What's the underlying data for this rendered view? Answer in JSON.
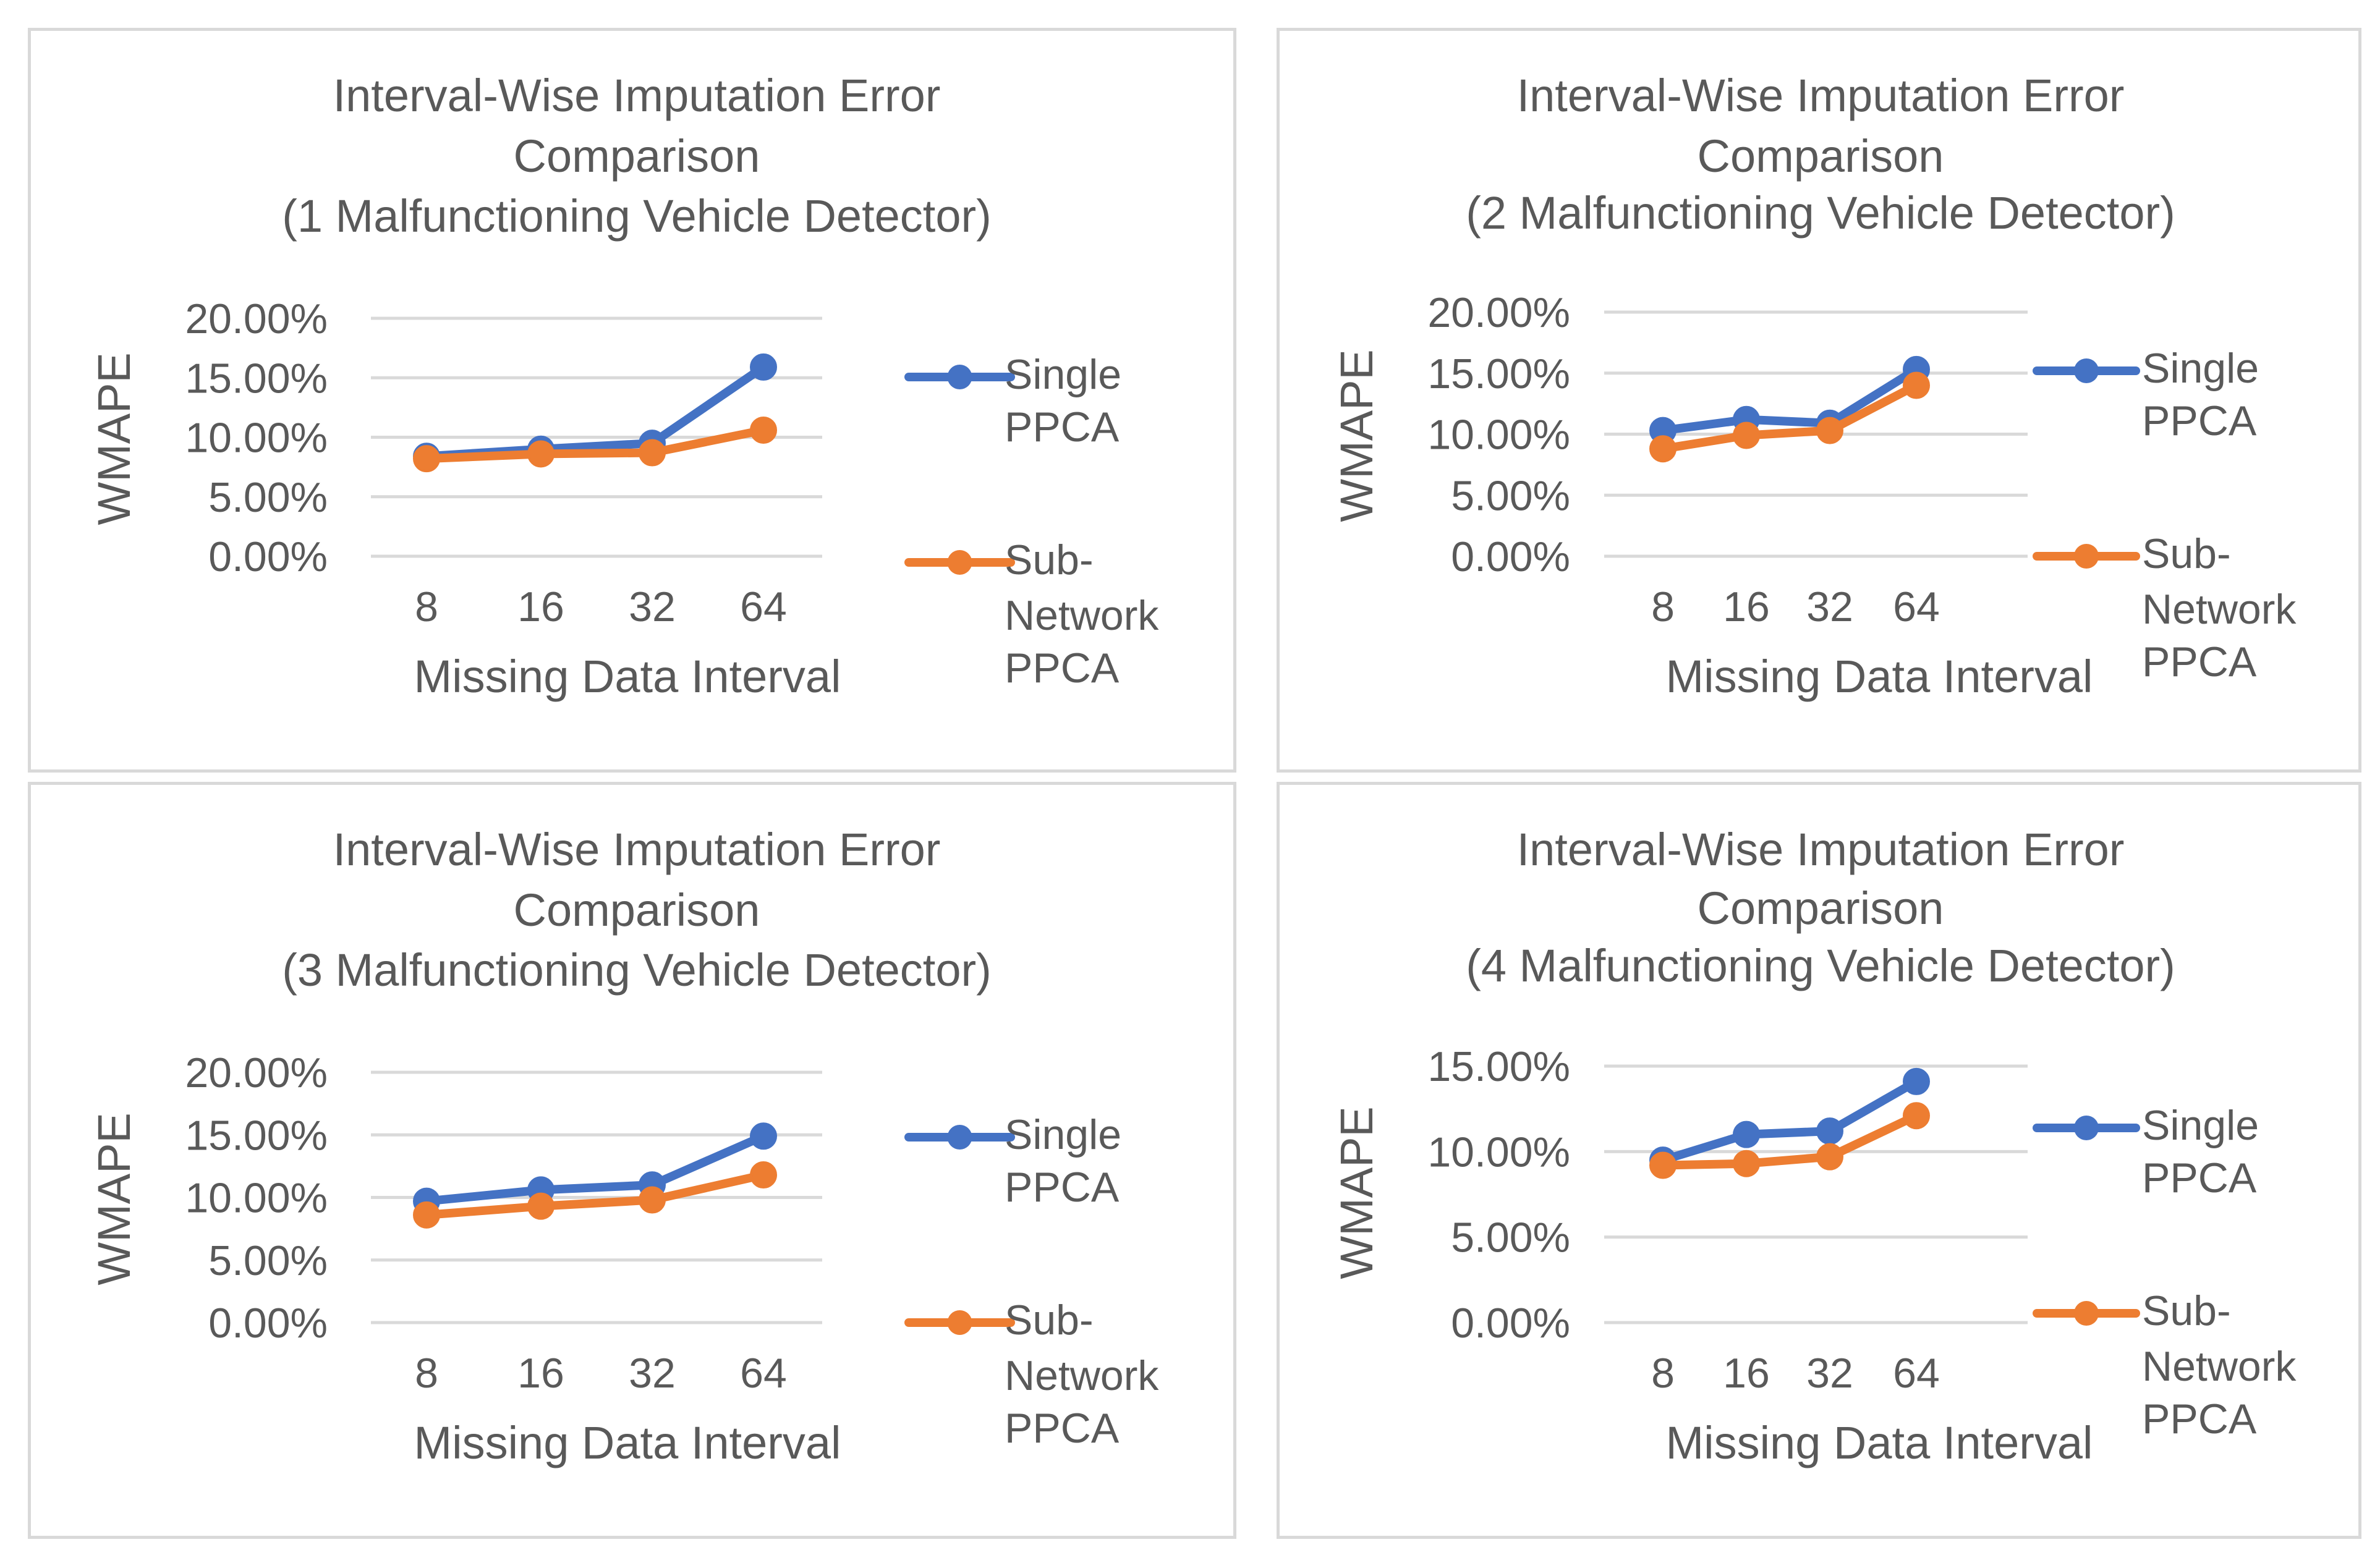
{
  "colors": {
    "single": "#4472c4",
    "sub": "#ed7d31",
    "text": "#595959",
    "grid": "#d9d9d9"
  },
  "chart_data": [
    {
      "type": "line",
      "title": [
        "Interval-Wise Imputation Error",
        "Comparison",
        "(1 Malfunctioning Vehicle Detector)"
      ],
      "xlabel": "Missing Data Interval",
      "ylabel": "WMAPE",
      "categories": [
        "8",
        "16",
        "32",
        "64"
      ],
      "yticks": [
        0,
        5,
        10,
        15,
        20
      ],
      "ytick_labels": [
        "0.00%",
        "5.00%",
        "10.00%",
        "15.00%",
        "20.00%"
      ],
      "ylim": [
        0,
        20
      ],
      "grid": true,
      "legend_position": "right",
      "series": [
        {
          "name": "Single PPCA",
          "legend_lines": [
            "Single",
            "PPCA"
          ],
          "values": [
            8.4,
            9.0,
            9.5,
            15.9
          ]
        },
        {
          "name": "Sub-Network PPCA",
          "legend_lines": [
            "Sub-",
            "Network",
            "PPCA"
          ],
          "values": [
            8.2,
            8.6,
            8.7,
            10.6
          ]
        }
      ]
    },
    {
      "type": "line",
      "title": [
        "Interval-Wise Imputation Error",
        "Comparison",
        "(2 Malfunctioning Vehicle Detector)"
      ],
      "xlabel": "Missing Data Interval",
      "ylabel": "WMAPE",
      "categories": [
        "8",
        "16",
        "32",
        "64"
      ],
      "yticks": [
        0,
        5,
        10,
        15,
        20
      ],
      "ytick_labels": [
        "0.00%",
        "5.00%",
        "10.00%",
        "15.00%",
        "20.00%"
      ],
      "ylim": [
        0,
        20
      ],
      "grid": true,
      "legend_position": "right",
      "series": [
        {
          "name": "Single PPCA",
          "legend_lines": [
            "Single",
            "PPCA"
          ],
          "values": [
            10.3,
            11.2,
            10.9,
            15.3
          ]
        },
        {
          "name": "Sub-Network PPCA",
          "legend_lines": [
            "Sub-",
            "Network",
            "PPCA"
          ],
          "values": [
            8.8,
            9.9,
            10.3,
            14.0
          ]
        }
      ]
    },
    {
      "type": "line",
      "title": [
        "Interval-Wise Imputation Error",
        "Comparison",
        "(3 Malfunctioning Vehicle Detector)"
      ],
      "xlabel": "Missing Data Interval",
      "ylabel": "WMAPE",
      "categories": [
        "8",
        "16",
        "32",
        "64"
      ],
      "yticks": [
        0,
        5,
        10,
        15,
        20
      ],
      "ytick_labels": [
        "0.00%",
        "5.00%",
        "10.00%",
        "15.00%",
        "20.00%"
      ],
      "ylim": [
        0,
        20
      ],
      "grid": true,
      "legend_position": "right",
      "series": [
        {
          "name": "Single PPCA",
          "legend_lines": [
            "Single",
            "PPCA"
          ],
          "values": [
            9.7,
            10.6,
            11.0,
            14.9
          ]
        },
        {
          "name": "Sub-Network PPCA",
          "legend_lines": [
            "Sub-",
            "Network",
            "PPCA"
          ],
          "values": [
            8.6,
            9.3,
            9.8,
            11.8
          ]
        }
      ]
    },
    {
      "type": "line",
      "title": [
        "Interval-Wise Imputation Error",
        "Comparison",
        "(4 Malfunctioning Vehicle Detector)"
      ],
      "xlabel": "Missing Data Interval",
      "ylabel": "WMAPE",
      "categories": [
        "8",
        "16",
        "32",
        "64"
      ],
      "yticks": [
        0,
        5,
        10,
        15
      ],
      "ytick_labels": [
        "0.00%",
        "5.00%",
        "10.00%",
        "15.00%"
      ],
      "ylim": [
        0,
        15
      ],
      "grid": true,
      "legend_position": "right",
      "series": [
        {
          "name": "Single PPCA",
          "legend_lines": [
            "Single",
            "PPCA"
          ],
          "values": [
            9.5,
            11.0,
            11.2,
            14.1
          ]
        },
        {
          "name": "Sub-Network PPCA",
          "legend_lines": [
            "Sub-",
            "Network",
            "PPCA"
          ],
          "values": [
            9.2,
            9.3,
            9.7,
            12.1
          ]
        }
      ]
    }
  ]
}
